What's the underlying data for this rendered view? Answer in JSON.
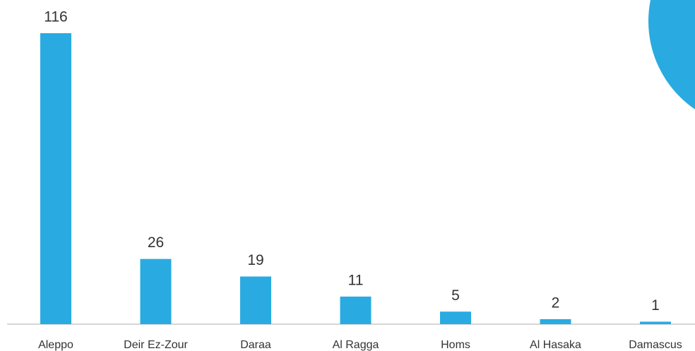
{
  "chart_data": {
    "type": "bar",
    "categories": [
      "Aleppo",
      "Deir Ez-Zour",
      "Daraa",
      "Al Ragga",
      "Homs",
      "Al Hasaka",
      "Damascus"
    ],
    "values": [
      116,
      26,
      19,
      11,
      5,
      2,
      1
    ],
    "color": "#29abe2"
  }
}
